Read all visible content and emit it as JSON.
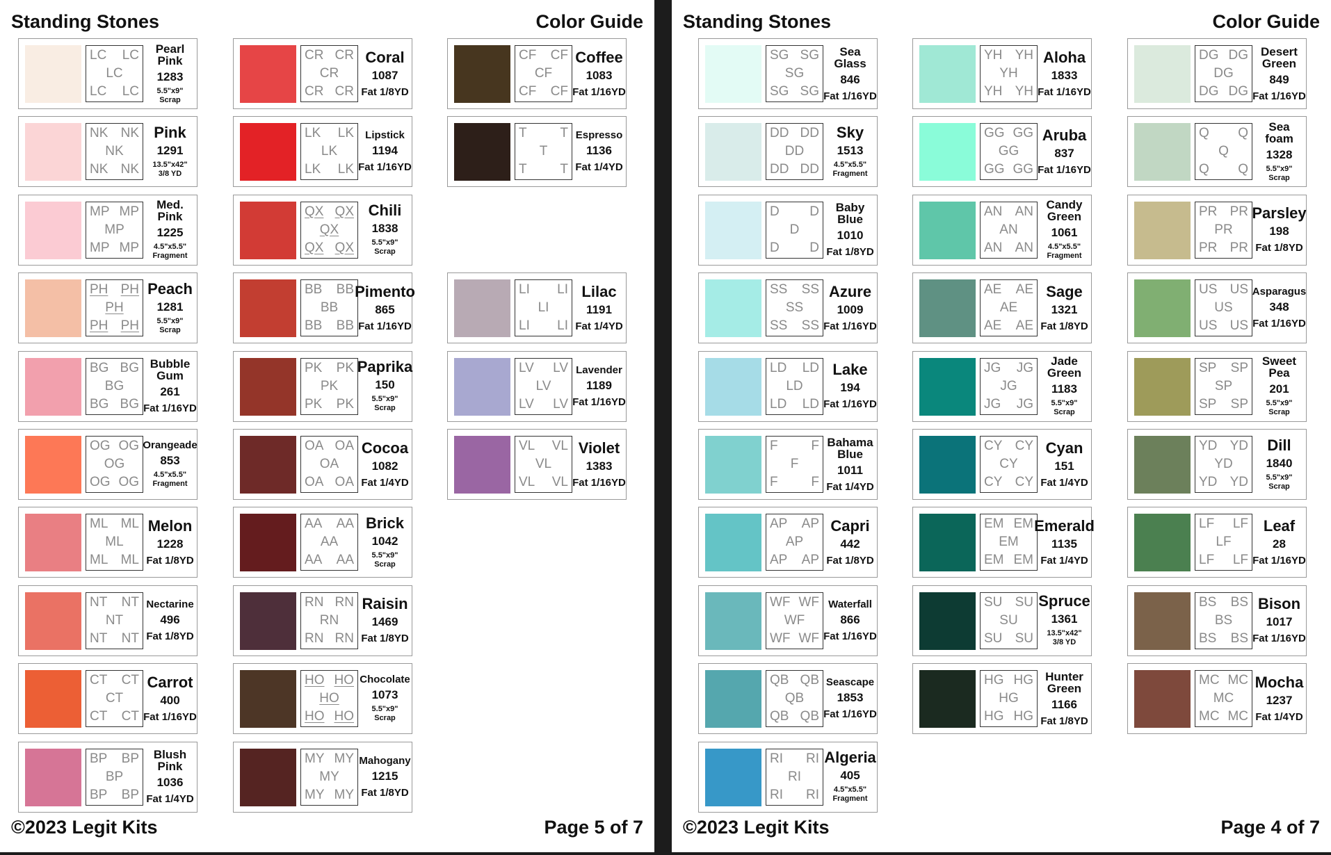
{
  "pages": [
    {
      "header_left": "Standing Stones",
      "header_right": "Color Guide",
      "footer_left": "©2023 Legit Kits",
      "footer_right": "Page 5 of 7",
      "columns": [
        [
          {
            "name": "Pearl Pink",
            "code": "LC",
            "number": "1283",
            "size": "5.5\"x9\" Scrap",
            "color": "#f9ede3"
          },
          {
            "name": "Pink",
            "code": "NK",
            "number": "1291",
            "size": "13.5\"x42\" 3/8 YD",
            "color": "#fbd5d6"
          },
          {
            "name": "Med. Pink",
            "code": "MP",
            "number": "1225",
            "size": "4.5\"x5.5\" Fragment",
            "color": "#fbcbd3"
          },
          {
            "name": "Peach",
            "code": "PH",
            "number": "1281",
            "size": "5.5\"x9\" Scrap",
            "color": "#f4bfa6",
            "underline": true
          },
          {
            "name": "Bubble Gum",
            "code": "BG",
            "number": "261",
            "size": "Fat 1/16YD",
            "color": "#f2a0ad"
          },
          {
            "name": "Orangeade",
            "code": "OG",
            "number": "853",
            "size": "4.5\"x5.5\" Fragment",
            "color": "#fd7856"
          },
          {
            "name": "Melon",
            "code": "ML",
            "number": "1228",
            "size": "Fat 1/8YD",
            "color": "#e97f83"
          },
          {
            "name": "Nectarine",
            "code": "NT",
            "number": "496",
            "size": "Fat 1/8YD",
            "color": "#ea7264"
          },
          {
            "name": "Carrot",
            "code": "CT",
            "number": "400",
            "size": "Fat 1/16YD",
            "color": "#ec5f35"
          },
          {
            "name": "Blush Pink",
            "code": "BP",
            "number": "1036",
            "size": "Fat 1/4YD",
            "color": "#d67596"
          }
        ],
        [
          {
            "name": "Coral",
            "code": "CR",
            "number": "1087",
            "size": "Fat 1/8YD",
            "color": "#e64546"
          },
          {
            "name": "Lipstick",
            "code": "LK",
            "number": "1194",
            "size": "Fat 1/16YD",
            "color": "#e32226"
          },
          {
            "name": "Chili",
            "code": "QX",
            "number": "1838",
            "size": "5.5\"x9\" Scrap",
            "color": "#d23b35",
            "underline": true
          },
          {
            "name": "Pimento",
            "code": "BB",
            "number": "865",
            "size": "Fat 1/16YD",
            "color": "#c23e31"
          },
          {
            "name": "Paprika",
            "code": "PK",
            "number": "150",
            "size": "5.5\"x9\" Scrap",
            "color": "#943529"
          },
          {
            "name": "Cocoa",
            "code": "OA",
            "number": "1082",
            "size": "Fat 1/4YD",
            "color": "#6e2a28"
          },
          {
            "name": "Brick",
            "code": "AA",
            "number": "1042",
            "size": "5.5\"x9\" Scrap",
            "color": "#641c1e"
          },
          {
            "name": "Raisin",
            "code": "RN",
            "number": "1469",
            "size": "Fat 1/8YD",
            "color": "#4e2f3a"
          },
          {
            "name": "Chocolate",
            "code": "HO",
            "number": "1073",
            "size": "5.5\"x9\" Scrap",
            "color": "#4d3626",
            "underline": true
          },
          {
            "name": "Mahogany",
            "code": "MY",
            "number": "1215",
            "size": "Fat 1/8YD",
            "color": "#552422"
          }
        ],
        [
          {
            "name": "Coffee",
            "code": "CF",
            "number": "1083",
            "size": "Fat 1/16YD",
            "color": "#47361f"
          },
          {
            "name": "Espresso",
            "code": "T",
            "number": "1136",
            "size": "Fat 1/4YD",
            "color": "#2d1f19"
          },
          null,
          {
            "name": "Lilac",
            "code": "LI",
            "number": "1191",
            "size": "Fat 1/4YD",
            "color": "#b8aab4"
          },
          {
            "name": "Lavender",
            "code": "LV",
            "number": "1189",
            "size": "Fat 1/16YD",
            "color": "#a8a8d0"
          },
          {
            "name": "Violet",
            "code": "VL",
            "number": "1383",
            "size": "Fat 1/16YD",
            "color": "#9a66a3"
          }
        ]
      ]
    },
    {
      "header_left": "Standing Stones",
      "header_right": "Color Guide",
      "footer_left": "©2023 Legit Kits",
      "footer_right": "Page 4 of 7",
      "columns": [
        [
          {
            "name": "Sea Glass",
            "code": "SG",
            "number": "846",
            "size": "Fat 1/16YD",
            "color": "#e3fbf5"
          },
          {
            "name": "Sky",
            "code": "DD",
            "number": "1513",
            "size": "4.5\"x5.5\" Fragment",
            "color": "#d9ecea"
          },
          {
            "name": "Baby Blue",
            "code": "D",
            "number": "1010",
            "size": "Fat 1/8YD",
            "color": "#d4eff3"
          },
          {
            "name": "Azure",
            "code": "SS",
            "number": "1009",
            "size": "Fat 1/16YD",
            "color": "#a5ece6"
          },
          {
            "name": "Lake",
            "code": "LD",
            "number": "194",
            "size": "Fat 1/16YD",
            "color": "#a6dce7"
          },
          {
            "name": "Bahama Blue",
            "code": "F",
            "number": "1011",
            "size": "Fat 1/4YD",
            "color": "#80d1cf"
          },
          {
            "name": "Capri",
            "code": "AP",
            "number": "442",
            "size": "Fat 1/8YD",
            "color": "#64c4c6"
          },
          {
            "name": "Waterfall",
            "code": "WF",
            "number": "866",
            "size": "Fat 1/16YD",
            "color": "#6ab8bb"
          },
          {
            "name": "Seascape",
            "code": "QB",
            "number": "1853",
            "size": "Fat 1/16YD",
            "color": "#55a7ae"
          },
          {
            "name": "Algeria",
            "code": "RI",
            "number": "405",
            "size": "4.5\"x5.5\" Fragment",
            "color": "#3798c8"
          }
        ],
        [
          {
            "name": "Aloha",
            "code": "YH",
            "number": "1833",
            "size": "Fat 1/16YD",
            "color": "#a0e8d5"
          },
          {
            "name": "Aruba",
            "code": "GG",
            "number": "837",
            "size": "Fat 1/16YD",
            "color": "#8afcd9"
          },
          {
            "name": "Candy Green",
            "code": "AN",
            "number": "1061",
            "size": "4.5\"x5.5\" Fragment",
            "color": "#5fc6a9"
          },
          {
            "name": "Sage",
            "code": "AE",
            "number": "1321",
            "size": "Fat 1/8YD",
            "color": "#5f9183"
          },
          {
            "name": "Jade Green",
            "code": "JG",
            "number": "1183",
            "size": "5.5\"x9\" Scrap",
            "color": "#0a877c"
          },
          {
            "name": "Cyan",
            "code": "CY",
            "number": "151",
            "size": "Fat 1/4YD",
            "color": "#0b7379"
          },
          {
            "name": "Emerald",
            "code": "EM",
            "number": "1135",
            "size": "Fat 1/4YD",
            "color": "#0b6659"
          },
          {
            "name": "Spruce",
            "code": "SU",
            "number": "1361",
            "size": "13.5\"x42\" 3/8 YD",
            "color": "#0d3b33"
          },
          {
            "name": "Hunter Green",
            "code": "HG",
            "number": "1166",
            "size": "Fat 1/8YD",
            "color": "#1b2a20"
          }
        ],
        [
          {
            "name": "Desert Green",
            "code": "DG",
            "number": "849",
            "size": "Fat 1/16YD",
            "color": "#dbeadd"
          },
          {
            "name": "Sea foam",
            "code": "Q",
            "number": "1328",
            "size": "5.5\"x9\" Scrap",
            "color": "#c1d7c3"
          },
          {
            "name": "Parsley",
            "code": "PR",
            "number": "198",
            "size": "Fat 1/8YD",
            "color": "#c6bb8e"
          },
          {
            "name": "Asparagus",
            "code": "US",
            "number": "348",
            "size": "Fat 1/16YD",
            "color": "#80af72"
          },
          {
            "name": "Sweet Pea",
            "code": "SP",
            "number": "201",
            "size": "5.5\"x9\" Scrap",
            "color": "#9e9b5a"
          },
          {
            "name": "Dill",
            "code": "YD",
            "number": "1840",
            "size": "5.5\"x9\" Scrap",
            "color": "#6c805b"
          },
          {
            "name": "Leaf",
            "code": "LF",
            "number": "28",
            "size": "Fat 1/16YD",
            "color": "#4b8050"
          },
          {
            "name": "Bison",
            "code": "BS",
            "number": "1017",
            "size": "Fat 1/16YD",
            "color": "#7b624a"
          },
          {
            "name": "Mocha",
            "code": "MC",
            "number": "1237",
            "size": "Fat 1/4YD",
            "color": "#7e493c"
          }
        ]
      ]
    }
  ]
}
